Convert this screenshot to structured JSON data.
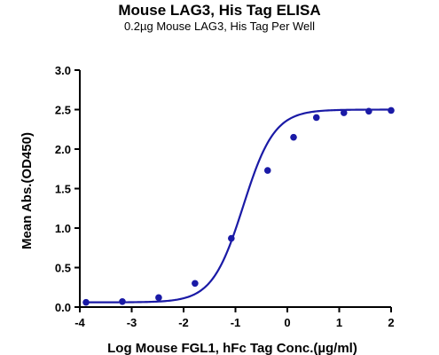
{
  "chart_data": {
    "type": "scatter",
    "title": "Mouse LAG3, His Tag ELISA",
    "subtitle": "0.2µg Mouse LAG3, His Tag Per Well",
    "xlabel": "Log Mouse FGL1, hFc Tag Conc.(µg/ml)",
    "ylabel": "Mean Abs.(OD450)",
    "xlim": [
      -4,
      2
    ],
    "ylim": [
      0,
      3
    ],
    "x_ticks": [
      "-4",
      "-3",
      "-2",
      "-1",
      "0",
      "1",
      "2"
    ],
    "y_ticks": [
      "0.0",
      "0.5",
      "1.0",
      "1.5",
      "2.0",
      "2.5",
      "3.0"
    ],
    "grid": false,
    "colors": {
      "series": "#1a1aa6",
      "axis": "#000000"
    },
    "series": [
      {
        "x": [
          -3.88,
          -3.18,
          -2.48,
          -1.78,
          -1.08,
          -0.38,
          0.12,
          0.56,
          1.09,
          1.57,
          2.0
        ],
        "y": [
          0.06,
          0.07,
          0.12,
          0.3,
          0.87,
          1.73,
          2.15,
          2.4,
          2.46,
          2.48,
          2.49
        ]
      }
    ],
    "fit_curve": {
      "type": "4PL",
      "bottom": 0.06,
      "top": 2.5,
      "log_ec50": -0.85,
      "hill": 1.45
    }
  }
}
